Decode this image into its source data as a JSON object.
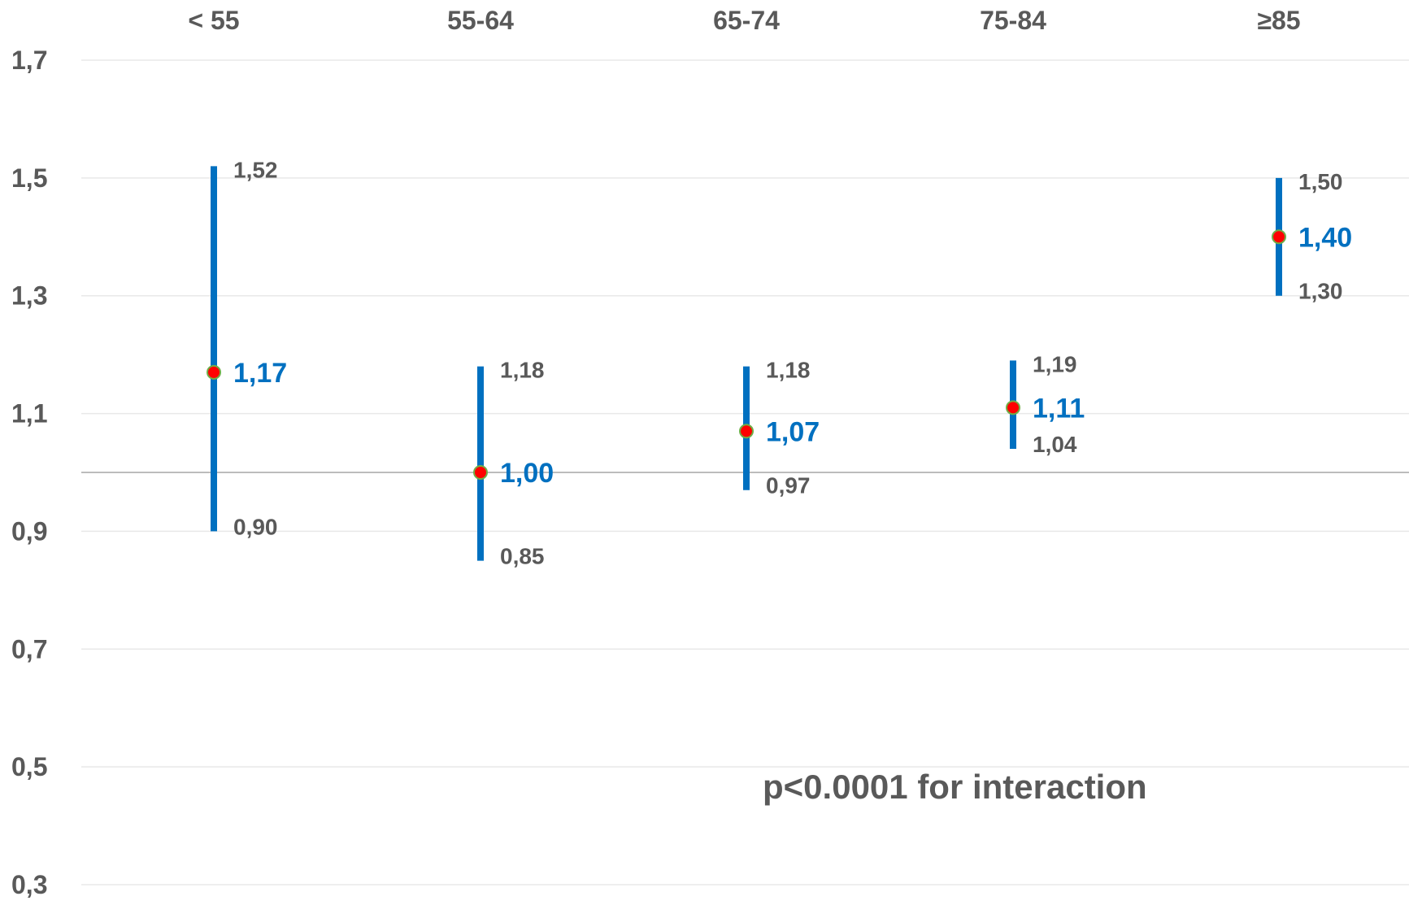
{
  "chart_data": {
    "type": "scatter",
    "subtype": "forest-plot",
    "title": "",
    "xlabel": "",
    "ylabel": "",
    "ylim": [
      0.3,
      1.7
    ],
    "y_ticks": [
      "0,3",
      "0,5",
      "0,7",
      "0,9",
      "1,1",
      "1,3",
      "1,5",
      "1,7"
    ],
    "y_tick_values": [
      0.3,
      0.5,
      0.7,
      0.9,
      1.1,
      1.3,
      1.5,
      1.7
    ],
    "reference_line": 1.0,
    "grid": true,
    "categories": [
      "< 55",
      "55-64",
      "65-74",
      "75-84",
      "≥85"
    ],
    "points": [
      {
        "category": "< 55",
        "estimate": 1.17,
        "lower": 0.9,
        "upper": 1.52,
        "estimate_label": "1,17",
        "lower_label": "0,90",
        "upper_label": "1,52"
      },
      {
        "category": "55-64",
        "estimate": 1.0,
        "lower": 0.85,
        "upper": 1.18,
        "estimate_label": "1,00",
        "lower_label": "0,85",
        "upper_label": "1,18"
      },
      {
        "category": "65-74",
        "estimate": 1.07,
        "lower": 0.97,
        "upper": 1.18,
        "estimate_label": "1,07",
        "lower_label": "0,97",
        "upper_label": "1,18"
      },
      {
        "category": "75-84",
        "estimate": 1.11,
        "lower": 1.04,
        "upper": 1.19,
        "estimate_label": "1,11",
        "lower_label": "1,04",
        "upper_label": "1,19"
      },
      {
        "category": "≥85",
        "estimate": 1.4,
        "lower": 1.3,
        "upper": 1.5,
        "estimate_label": "1,40",
        "lower_label": "1,30",
        "upper_label": "1,50"
      }
    ],
    "annotation": "p<0.0001 for interaction",
    "colors": {
      "ci_bar": "#0070c0",
      "marker_fill": "#ff0000",
      "marker_stroke": "#70ad47",
      "estimate_label": "#0070c0",
      "text": "#595959",
      "grid": "#e8e8e8",
      "reference_line": "#a6a6a6"
    }
  }
}
